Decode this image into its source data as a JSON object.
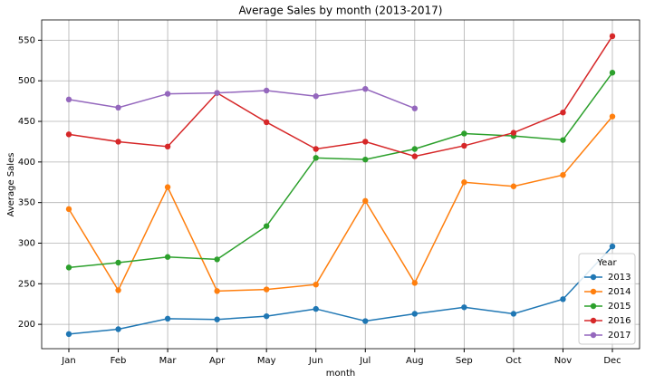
{
  "chart_data": {
    "type": "line",
    "title": "Average Sales by month (2013-2017)",
    "xlabel": "month",
    "ylabel": "Average Sales",
    "categories": [
      "Jan",
      "Feb",
      "Mar",
      "Apr",
      "May",
      "Jun",
      "Jul",
      "Aug",
      "Sep",
      "Oct",
      "Nov",
      "Dec"
    ],
    "series": [
      {
        "name": "2013",
        "color": "#1f77b4",
        "values": [
          188,
          194,
          207,
          206,
          210,
          219,
          204,
          213,
          221,
          213,
          231,
          296
        ]
      },
      {
        "name": "2014",
        "color": "#ff7f0e",
        "values": [
          342,
          242,
          369,
          241,
          243,
          249,
          352,
          251,
          375,
          370,
          384,
          456
        ]
      },
      {
        "name": "2015",
        "color": "#2ca02c",
        "values": [
          270,
          276,
          283,
          280,
          321,
          405,
          403,
          416,
          435,
          432,
          427,
          510
        ]
      },
      {
        "name": "2016",
        "color": "#d62728",
        "values": [
          434,
          425,
          419,
          485,
          449,
          416,
          425,
          407,
          420,
          436,
          461,
          555
        ]
      },
      {
        "name": "2017",
        "color": "#9467bd",
        "values": [
          477,
          467,
          484,
          485,
          488,
          481,
          490,
          466,
          null,
          null,
          null,
          null
        ]
      }
    ],
    "ylim": [
      170,
      575
    ],
    "yticks": [
      200,
      250,
      300,
      350,
      400,
      450,
      500,
      550
    ],
    "grid": true,
    "legend_title": "Year",
    "legend_position": "lower right"
  }
}
